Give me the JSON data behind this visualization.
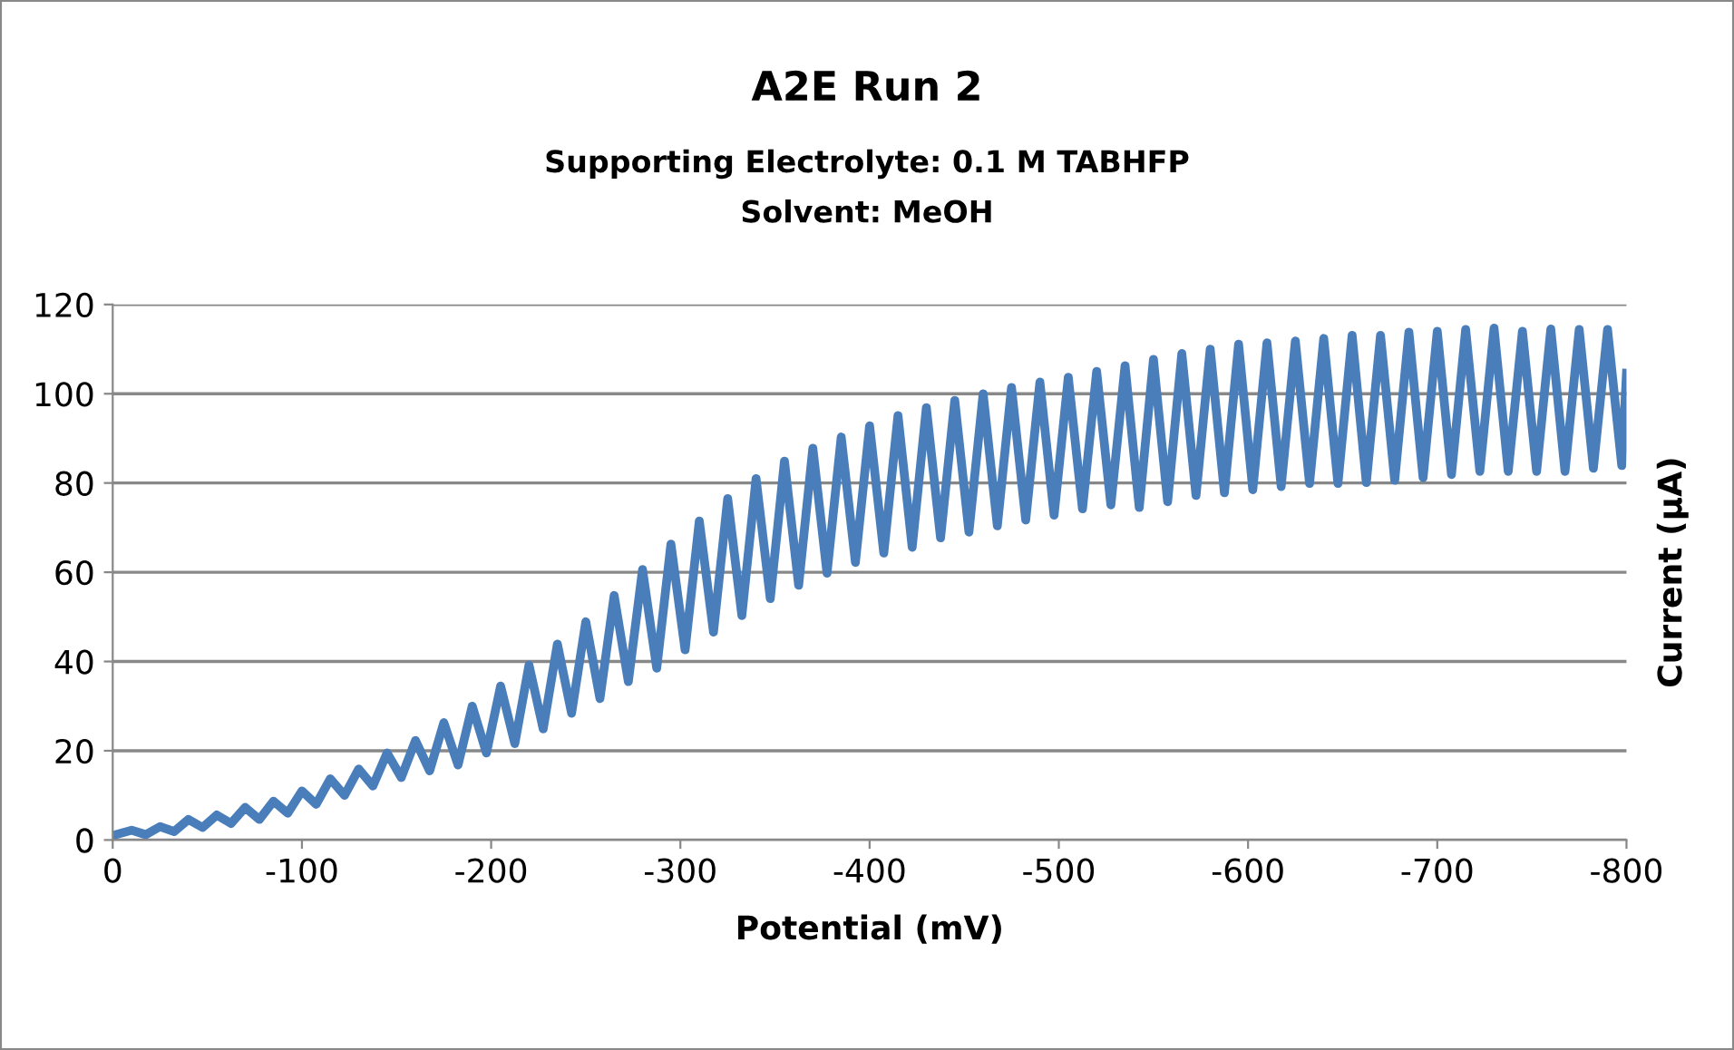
{
  "chart_data": {
    "type": "line",
    "title": "A2E Run 2",
    "subtitle": "Supporting Electrolyte: 0.1 M TABHFP\nSolvent: MeOH",
    "xlabel": "Potential (mV)",
    "ylabel": "Current (µA)",
    "x": [
      0,
      -10,
      -17.5,
      -25,
      -32.5,
      -40,
      -47.5,
      -55,
      -62.5,
      -70,
      -77.5,
      -85,
      -92.5,
      -100,
      -107.5,
      -115,
      -122.5,
      -130,
      -137.5,
      -145,
      -152.5,
      -160,
      -167.5,
      -175,
      -182.5,
      -190,
      -197.5,
      -205,
      -212.5,
      -220,
      -227.5,
      -235,
      -242.5,
      -250,
      -257.5,
      -265,
      -272.5,
      -280,
      -287.5,
      -295,
      -302.5,
      -310,
      -317.5,
      -325,
      -332.5,
      -340,
      -347.5,
      -355,
      -362.5,
      -370,
      -377.5,
      -385,
      -392.5,
      -400,
      -407.5,
      -415,
      -422.5,
      -430,
      -437.5,
      -445,
      -452.5,
      -460,
      -467.5,
      -475,
      -482.5,
      -490,
      -497.5,
      -505,
      -512.5,
      -520,
      -527.5,
      -535,
      -542.5,
      -550,
      -557.5,
      -565,
      -572.5,
      -580,
      -587.5,
      -595,
      -602.5,
      -610,
      -617.5,
      -625,
      -632.5,
      -640,
      -647.5,
      -655,
      -662.5,
      -670,
      -677.5,
      -685,
      -692.5,
      -700,
      -707.5,
      -715,
      -722.5,
      -730,
      -737.5,
      -745,
      -752.5,
      -760,
      -767.5,
      -775,
      -782.5,
      -790,
      -797.5,
      -800
    ],
    "series": [
      {
        "color": "#4a7ebb",
        "values": [
          1.0,
          2.2,
          1.2,
          3.0,
          1.9,
          4.6,
          2.8,
          5.6,
          3.7,
          7.3,
          4.6,
          8.7,
          6.0,
          11.0,
          8.0,
          13.7,
          10.0,
          15.9,
          12.1,
          19.5,
          14.0,
          22.3,
          15.5,
          26.3,
          16.8,
          30.0,
          19.5,
          34.5,
          21.6,
          39.2,
          24.9,
          43.9,
          28.4,
          48.9,
          31.7,
          54.8,
          35.5,
          60.6,
          38.5,
          66.3,
          42.6,
          71.5,
          46.6,
          76.5,
          50.3,
          81.0,
          54.1,
          84.9,
          57.1,
          87.8,
          59.8,
          90.3,
          62.2,
          92.8,
          64.3,
          95.1,
          65.6,
          96.9,
          67.7,
          98.5,
          69.0,
          100.0,
          70.4,
          101.4,
          71.7,
          102.6,
          72.8,
          103.7,
          74.2,
          105.0,
          75.1,
          106.3,
          74.5,
          107.7,
          75.8,
          109.0,
          77.2,
          110.0,
          77.8,
          111.1,
          78.5,
          111.4,
          79.2,
          111.8,
          79.9,
          112.4,
          79.9,
          113.1,
          80.1,
          113.1,
          80.6,
          113.8,
          81.2,
          114.0,
          81.9,
          114.4,
          82.6,
          114.7,
          82.6,
          114.0,
          82.6,
          114.5,
          82.6,
          114.4,
          83.3,
          114.4,
          83.9,
          104.6
        ]
      }
    ],
    "xlim": [
      0,
      -800
    ],
    "xticks": [
      0,
      -100,
      -200,
      -300,
      -400,
      -500,
      -600,
      -700,
      -800
    ],
    "ylim": [
      0,
      120
    ],
    "yticks": [
      0,
      20,
      40,
      60,
      80,
      100,
      120
    ],
    "grid": "y",
    "marker": "none",
    "line_style": "solid",
    "legend": false
  }
}
